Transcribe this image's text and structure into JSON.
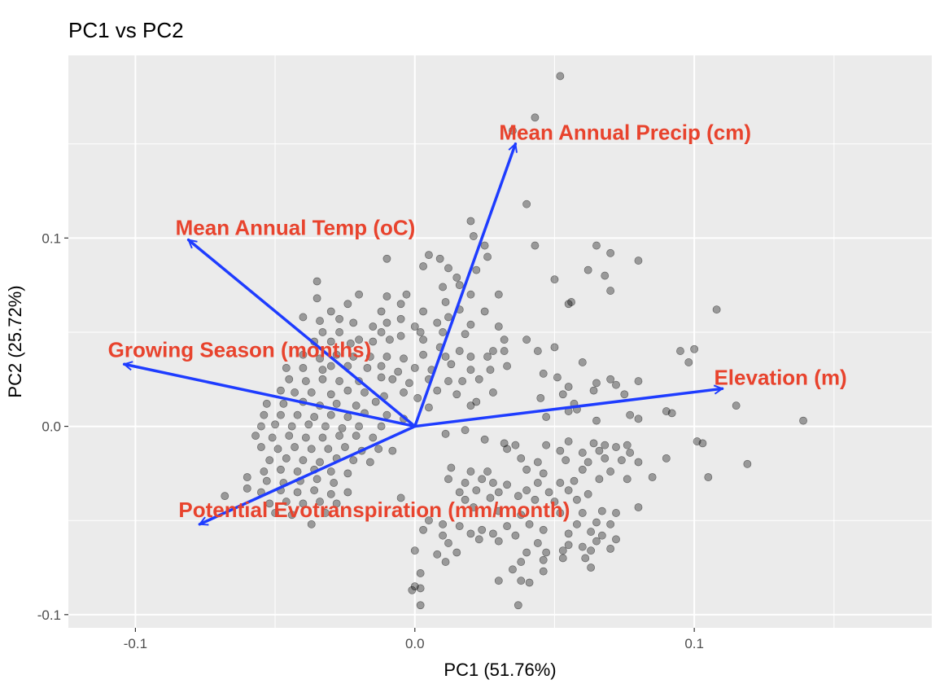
{
  "chart_data": {
    "type": "scatter",
    "title": "PC1 vs PC2",
    "xlabel": "PC1 (51.76%)",
    "ylabel": "PC2 (25.72%)",
    "xlim": [
      -0.124,
      0.185
    ],
    "ylim": [
      -0.107,
      0.197
    ],
    "x_ticks": [
      -0.1,
      0.0,
      0.1
    ],
    "x_tick_labels": [
      "-0.1",
      "0.0",
      "0.1"
    ],
    "y_ticks": [
      -0.1,
      0.0,
      0.1
    ],
    "y_tick_labels": [
      "-0.1",
      "0.0",
      "0.1"
    ],
    "grid": true,
    "background_color": "#ebebeb",
    "grid_color": "#ffffff",
    "point_color": "#000000",
    "point_opacity": 0.35,
    "arrow_color": "#1e3cff",
    "label_color": "#e8432d",
    "loadings": [
      {
        "name": "Mean Annual Precip (cm)",
        "x": 0.036,
        "y": 0.15
      },
      {
        "name": "Mean Annual Temp (oC)",
        "x": -0.081,
        "y": 0.099
      },
      {
        "name": "Growing Season (months)",
        "x": -0.104,
        "y": 0.033
      },
      {
        "name": "Elevation (m)",
        "x": 0.11,
        "y": 0.02
      },
      {
        "name": "Potential Evotranspiration (mm/month)",
        "x": -0.077,
        "y": -0.052
      }
    ],
    "points": [
      [
        0.052,
        0.186
      ],
      [
        0.043,
        0.164
      ],
      [
        0.035,
        0.157
      ],
      [
        0.04,
        0.118
      ],
      [
        0.02,
        0.109
      ],
      [
        0.021,
        0.101
      ],
      [
        0.025,
        0.096
      ],
      [
        0.026,
        0.09
      ],
      [
        0.005,
        0.091
      ],
      [
        0.043,
        0.096
      ],
      [
        0.065,
        0.096
      ],
      [
        0.07,
        0.092
      ],
      [
        0.08,
        0.088
      ],
      [
        -0.01,
        0.089
      ],
      [
        0.003,
        0.085
      ],
      [
        0.009,
        0.089
      ],
      [
        0.012,
        0.084
      ],
      [
        0.015,
        0.079
      ],
      [
        0.022,
        0.083
      ],
      [
        0.05,
        0.078
      ],
      [
        0.062,
        0.083
      ],
      [
        0.068,
        0.08
      ],
      [
        -0.035,
        0.077
      ],
      [
        -0.02,
        0.07
      ],
      [
        -0.01,
        0.069
      ],
      [
        -0.003,
        0.07
      ],
      [
        0.01,
        0.074
      ],
      [
        0.016,
        0.075
      ],
      [
        0.02,
        0.07
      ],
      [
        0.03,
        0.07
      ],
      [
        0.055,
        0.065
      ],
      [
        0.056,
        0.066
      ],
      [
        0.07,
        0.072
      ],
      [
        0.108,
        0.062
      ],
      [
        -0.04,
        0.058
      ],
      [
        -0.035,
        0.068
      ],
      [
        -0.03,
        0.061
      ],
      [
        -0.024,
        0.065
      ],
      [
        -0.012,
        0.061
      ],
      [
        -0.005,
        0.065
      ],
      [
        0.003,
        0.061
      ],
      [
        0.011,
        0.066
      ],
      [
        0.016,
        0.062
      ],
      [
        0.025,
        0.061
      ],
      [
        -0.034,
        0.056
      ],
      [
        -0.027,
        0.057
      ],
      [
        -0.022,
        0.055
      ],
      [
        -0.015,
        0.053
      ],
      [
        -0.01,
        0.055
      ],
      [
        -0.005,
        0.057
      ],
      [
        0.0,
        0.053
      ],
      [
        0.008,
        0.055
      ],
      [
        0.012,
        0.058
      ],
      [
        0.02,
        0.054
      ],
      [
        0.03,
        0.053
      ],
      [
        -0.033,
        0.05
      ],
      [
        -0.027,
        0.05
      ],
      [
        -0.02,
        0.046
      ],
      [
        -0.012,
        0.05
      ],
      [
        -0.005,
        0.048
      ],
      [
        0.002,
        0.05
      ],
      [
        0.01,
        0.05
      ],
      [
        0.018,
        0.049
      ],
      [
        0.032,
        0.046
      ],
      [
        0.04,
        0.046
      ],
      [
        -0.036,
        0.045
      ],
      [
        -0.03,
        0.045
      ],
      [
        -0.023,
        0.044
      ],
      [
        -0.015,
        0.045
      ],
      [
        -0.009,
        0.046
      ],
      [
        0.003,
        0.046
      ],
      [
        0.009,
        0.042
      ],
      [
        0.016,
        0.04
      ],
      [
        0.028,
        0.04
      ],
      [
        0.044,
        0.04
      ],
      [
        0.05,
        0.042
      ],
      [
        0.095,
        0.04
      ],
      [
        0.1,
        0.041
      ],
      [
        -0.04,
        0.038
      ],
      [
        -0.034,
        0.036
      ],
      [
        -0.028,
        0.038
      ],
      [
        -0.022,
        0.037
      ],
      [
        -0.016,
        0.037
      ],
      [
        -0.01,
        0.037
      ],
      [
        -0.004,
        0.036
      ],
      [
        0.003,
        0.038
      ],
      [
        0.011,
        0.037
      ],
      [
        0.02,
        0.037
      ],
      [
        0.026,
        0.037
      ],
      [
        0.032,
        0.04
      ],
      [
        0.06,
        0.034
      ],
      [
        0.098,
        0.034
      ],
      [
        -0.046,
        0.031
      ],
      [
        -0.04,
        0.031
      ],
      [
        -0.033,
        0.03
      ],
      [
        -0.03,
        0.032
      ],
      [
        -0.024,
        0.032
      ],
      [
        -0.017,
        0.031
      ],
      [
        -0.012,
        0.032
      ],
      [
        -0.006,
        0.029
      ],
      [
        0.0,
        0.031
      ],
      [
        0.006,
        0.03
      ],
      [
        0.013,
        0.033
      ],
      [
        0.02,
        0.03
      ],
      [
        0.027,
        0.03
      ],
      [
        0.033,
        0.032
      ],
      [
        0.046,
        0.028
      ],
      [
        0.051,
        0.026
      ],
      [
        0.065,
        0.023
      ],
      [
        0.07,
        0.025
      ],
      [
        0.072,
        0.022
      ],
      [
        -0.045,
        0.025
      ],
      [
        -0.039,
        0.024
      ],
      [
        -0.033,
        0.025
      ],
      [
        -0.027,
        0.024
      ],
      [
        -0.02,
        0.024
      ],
      [
        -0.012,
        0.026
      ],
      [
        -0.008,
        0.025
      ],
      [
        -0.002,
        0.023
      ],
      [
        0.005,
        0.025
      ],
      [
        0.012,
        0.024
      ],
      [
        0.017,
        0.024
      ],
      [
        0.023,
        0.025
      ],
      [
        0.055,
        0.021
      ],
      [
        0.064,
        0.019
      ],
      [
        0.08,
        0.024
      ],
      [
        0.115,
        0.011
      ],
      [
        -0.048,
        0.019
      ],
      [
        -0.043,
        0.018
      ],
      [
        -0.037,
        0.018
      ],
      [
        -0.03,
        0.017
      ],
      [
        -0.024,
        0.019
      ],
      [
        -0.018,
        0.018
      ],
      [
        -0.011,
        0.016
      ],
      [
        -0.004,
        0.018
      ],
      [
        0.001,
        0.015
      ],
      [
        0.008,
        0.019
      ],
      [
        0.015,
        0.017
      ],
      [
        0.022,
        0.013
      ],
      [
        0.028,
        0.018
      ],
      [
        0.045,
        0.015
      ],
      [
        0.053,
        0.017
      ],
      [
        0.057,
        0.012
      ],
      [
        0.075,
        0.017
      ],
      [
        -0.053,
        0.012
      ],
      [
        -0.047,
        0.012
      ],
      [
        -0.04,
        0.013
      ],
      [
        -0.034,
        0.011
      ],
      [
        -0.028,
        0.012
      ],
      [
        -0.021,
        0.011
      ],
      [
        -0.014,
        0.013
      ],
      [
        0.005,
        0.01
      ],
      [
        0.02,
        0.011
      ],
      [
        0.055,
        0.008
      ],
      [
        0.058,
        0.009
      ],
      [
        0.077,
        0.006
      ],
      [
        0.092,
        0.007
      ],
      [
        0.139,
        0.003
      ],
      [
        -0.054,
        0.006
      ],
      [
        -0.048,
        0.006
      ],
      [
        -0.042,
        0.006
      ],
      [
        -0.036,
        0.005
      ],
      [
        -0.03,
        0.006
      ],
      [
        -0.024,
        0.005
      ],
      [
        -0.018,
        0.007
      ],
      [
        -0.01,
        0.006
      ],
      [
        -0.004,
        0.004
      ],
      [
        0.047,
        0.005
      ],
      [
        0.065,
        0.003
      ],
      [
        0.08,
        0.004
      ],
      [
        0.09,
        0.008
      ],
      [
        -0.055,
        0.0
      ],
      [
        -0.05,
        0.001
      ],
      [
        -0.044,
        0.0
      ],
      [
        -0.038,
        0.001
      ],
      [
        -0.032,
        0.0
      ],
      [
        -0.026,
        -0.001
      ],
      [
        -0.02,
        0.0
      ],
      [
        -0.012,
        0.0
      ],
      [
        0.011,
        -0.004
      ],
      [
        0.018,
        -0.002
      ],
      [
        -0.057,
        -0.005
      ],
      [
        -0.051,
        -0.006
      ],
      [
        -0.045,
        -0.005
      ],
      [
        -0.039,
        -0.006
      ],
      [
        -0.033,
        -0.006
      ],
      [
        -0.027,
        -0.005
      ],
      [
        -0.021,
        -0.005
      ],
      [
        -0.015,
        -0.006
      ],
      [
        0.025,
        -0.007
      ],
      [
        0.032,
        -0.009
      ],
      [
        0.036,
        -0.01
      ],
      [
        0.047,
        -0.01
      ],
      [
        0.055,
        -0.008
      ],
      [
        0.064,
        -0.009
      ],
      [
        0.068,
        -0.01
      ],
      [
        0.072,
        -0.011
      ],
      [
        0.076,
        -0.01
      ],
      [
        0.101,
        -0.008
      ],
      [
        0.103,
        -0.009
      ],
      [
        -0.055,
        -0.011
      ],
      [
        -0.049,
        -0.012
      ],
      [
        -0.043,
        -0.011
      ],
      [
        -0.037,
        -0.012
      ],
      [
        -0.031,
        -0.012
      ],
      [
        -0.025,
        -0.011
      ],
      [
        -0.019,
        -0.013
      ],
      [
        -0.013,
        -0.012
      ],
      [
        -0.008,
        -0.013
      ],
      [
        0.033,
        -0.012
      ],
      [
        0.052,
        -0.013
      ],
      [
        0.06,
        -0.014
      ],
      [
        0.066,
        -0.013
      ],
      [
        0.077,
        -0.014
      ],
      [
        0.09,
        -0.017
      ],
      [
        -0.052,
        -0.018
      ],
      [
        -0.046,
        -0.017
      ],
      [
        -0.04,
        -0.018
      ],
      [
        -0.034,
        -0.019
      ],
      [
        -0.028,
        -0.017
      ],
      [
        -0.022,
        -0.018
      ],
      [
        -0.016,
        -0.019
      ],
      [
        0.038,
        -0.017
      ],
      [
        0.044,
        -0.019
      ],
      [
        0.054,
        -0.018
      ],
      [
        0.062,
        -0.019
      ],
      [
        0.068,
        -0.017
      ],
      [
        0.074,
        -0.018
      ],
      [
        0.08,
        -0.019
      ],
      [
        0.119,
        -0.02
      ],
      [
        -0.054,
        -0.024
      ],
      [
        -0.048,
        -0.023
      ],
      [
        -0.042,
        -0.024
      ],
      [
        -0.036,
        -0.023
      ],
      [
        -0.03,
        -0.024
      ],
      [
        -0.024,
        -0.025
      ],
      [
        0.013,
        -0.022
      ],
      [
        0.02,
        -0.024
      ],
      [
        0.026,
        -0.024
      ],
      [
        0.04,
        -0.023
      ],
      [
        0.046,
        -0.025
      ],
      [
        0.06,
        -0.023
      ],
      [
        0.07,
        -0.024
      ],
      [
        -0.06,
        -0.027
      ],
      [
        -0.053,
        -0.029
      ],
      [
        -0.047,
        -0.03
      ],
      [
        -0.041,
        -0.029
      ],
      [
        -0.035,
        -0.028
      ],
      [
        -0.029,
        -0.03
      ],
      [
        0.012,
        -0.028
      ],
      [
        0.018,
        -0.03
      ],
      [
        0.024,
        -0.028
      ],
      [
        0.028,
        -0.03
      ],
      [
        0.033,
        -0.031
      ],
      [
        0.044,
        -0.03
      ],
      [
        0.052,
        -0.03
      ],
      [
        0.057,
        -0.029
      ],
      [
        0.066,
        -0.028
      ],
      [
        0.076,
        -0.028
      ],
      [
        0.085,
        -0.027
      ],
      [
        0.105,
        -0.027
      ],
      [
        -0.06,
        -0.033
      ],
      [
        -0.055,
        -0.035
      ],
      [
        -0.048,
        -0.034
      ],
      [
        -0.042,
        -0.035
      ],
      [
        -0.036,
        -0.034
      ],
      [
        -0.03,
        -0.036
      ],
      [
        -0.024,
        -0.035
      ],
      [
        0.016,
        -0.035
      ],
      [
        0.022,
        -0.034
      ],
      [
        0.03,
        -0.035
      ],
      [
        0.04,
        -0.034
      ],
      [
        0.048,
        -0.035
      ],
      [
        0.055,
        -0.034
      ],
      [
        0.062,
        -0.036
      ],
      [
        -0.068,
        -0.037
      ],
      [
        -0.052,
        -0.041
      ],
      [
        -0.046,
        -0.04
      ],
      [
        -0.04,
        -0.041
      ],
      [
        -0.034,
        -0.04
      ],
      [
        -0.028,
        -0.041
      ],
      [
        -0.005,
        -0.038
      ],
      [
        0.018,
        -0.039
      ],
      [
        0.027,
        -0.038
      ],
      [
        0.037,
        -0.037
      ],
      [
        0.043,
        -0.039
      ],
      [
        0.05,
        -0.04
      ],
      [
        0.058,
        -0.039
      ],
      [
        -0.05,
        -0.046
      ],
      [
        -0.044,
        -0.047
      ],
      [
        -0.032,
        -0.046
      ],
      [
        0.021,
        -0.043
      ],
      [
        0.03,
        -0.045
      ],
      [
        0.038,
        -0.047
      ],
      [
        0.052,
        -0.046
      ],
      [
        0.06,
        -0.046
      ],
      [
        0.067,
        -0.045
      ],
      [
        0.072,
        -0.046
      ],
      [
        0.08,
        -0.043
      ],
      [
        -0.037,
        -0.052
      ],
      [
        0.005,
        -0.05
      ],
      [
        0.01,
        -0.052
      ],
      [
        0.016,
        -0.053
      ],
      [
        0.024,
        -0.055
      ],
      [
        0.033,
        -0.053
      ],
      [
        0.041,
        -0.052
      ],
      [
        0.058,
        -0.052
      ],
      [
        0.065,
        -0.051
      ],
      [
        0.07,
        -0.052
      ],
      [
        0.003,
        -0.055
      ],
      [
        0.01,
        -0.058
      ],
      [
        0.02,
        -0.057
      ],
      [
        0.028,
        -0.057
      ],
      [
        0.036,
        -0.058
      ],
      [
        0.046,
        -0.055
      ],
      [
        0.055,
        -0.057
      ],
      [
        0.063,
        -0.056
      ],
      [
        0.067,
        -0.058
      ],
      [
        0.012,
        -0.062
      ],
      [
        0.023,
        -0.06
      ],
      [
        0.03,
        -0.061
      ],
      [
        0.044,
        -0.062
      ],
      [
        0.055,
        -0.063
      ],
      [
        0.065,
        -0.061
      ],
      [
        0.072,
        -0.06
      ],
      [
        0.0,
        -0.066
      ],
      [
        0.008,
        -0.068
      ],
      [
        0.015,
        -0.067
      ],
      [
        0.04,
        -0.067
      ],
      [
        0.047,
        -0.067
      ],
      [
        0.053,
        -0.066
      ],
      [
        0.06,
        -0.064
      ],
      [
        0.063,
        -0.066
      ],
      [
        0.07,
        -0.065
      ],
      [
        0.011,
        -0.072
      ],
      [
        0.038,
        -0.072
      ],
      [
        0.046,
        -0.071
      ],
      [
        0.053,
        -0.07
      ],
      [
        0.061,
        -0.07
      ],
      [
        0.002,
        -0.078
      ],
      [
        0.035,
        -0.076
      ],
      [
        0.046,
        -0.077
      ],
      [
        0.063,
        -0.075
      ],
      [
        0.03,
        -0.082
      ],
      [
        0.038,
        -0.082
      ],
      [
        0.041,
        -0.083
      ],
      [
        0.0,
        -0.085
      ],
      [
        -0.001,
        -0.087
      ],
      [
        0.002,
        -0.086
      ],
      [
        0.037,
        -0.095
      ],
      [
        0.002,
        -0.095
      ]
    ]
  }
}
